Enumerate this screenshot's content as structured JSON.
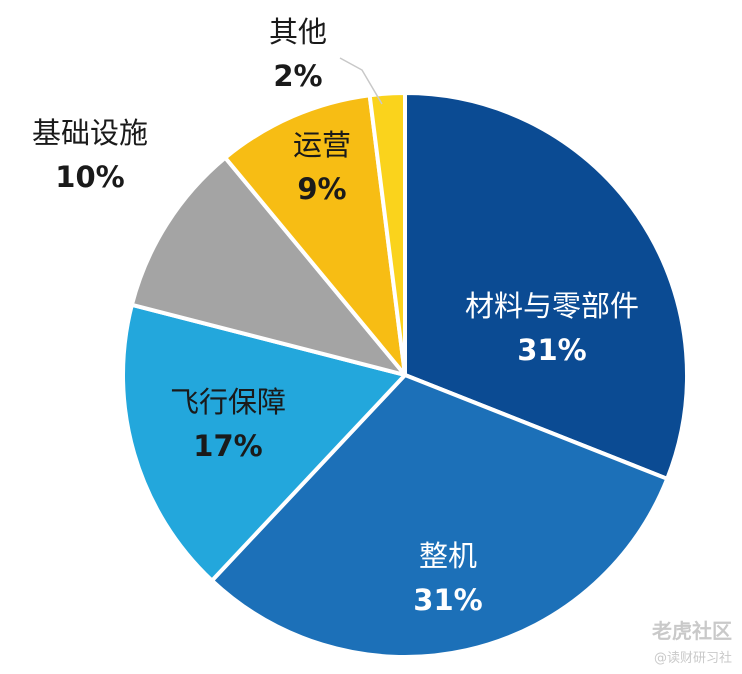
{
  "chart_data": {
    "type": "pie",
    "slices": [
      {
        "label": "材料与零部件",
        "value": 31,
        "value_label": "31%",
        "color": "#0b4b93"
      },
      {
        "label": "整机",
        "value": 31,
        "value_label": "31%",
        "color": "#1c70b8"
      },
      {
        "label": "飞行保障",
        "value": 17,
        "value_label": "17%",
        "color": "#23a7dc"
      },
      {
        "label": "基础设施",
        "value": 10,
        "value_label": "10%",
        "color": "#a4a4a4"
      },
      {
        "label": "运营",
        "value": 9,
        "value_label": "9%",
        "color": "#f7bd14"
      },
      {
        "label": "其他",
        "value": 2,
        "value_label": "2%",
        "color": "#fad31c"
      }
    ],
    "start_angle_deg": 0,
    "direction": "clockwise",
    "slice_border_color": "#ffffff",
    "label_colors": {
      "dark": "#1a1a1a",
      "light": "#ffffff"
    }
  },
  "watermark": {
    "line1": "老虎社区",
    "line2": "@读财研习社"
  }
}
